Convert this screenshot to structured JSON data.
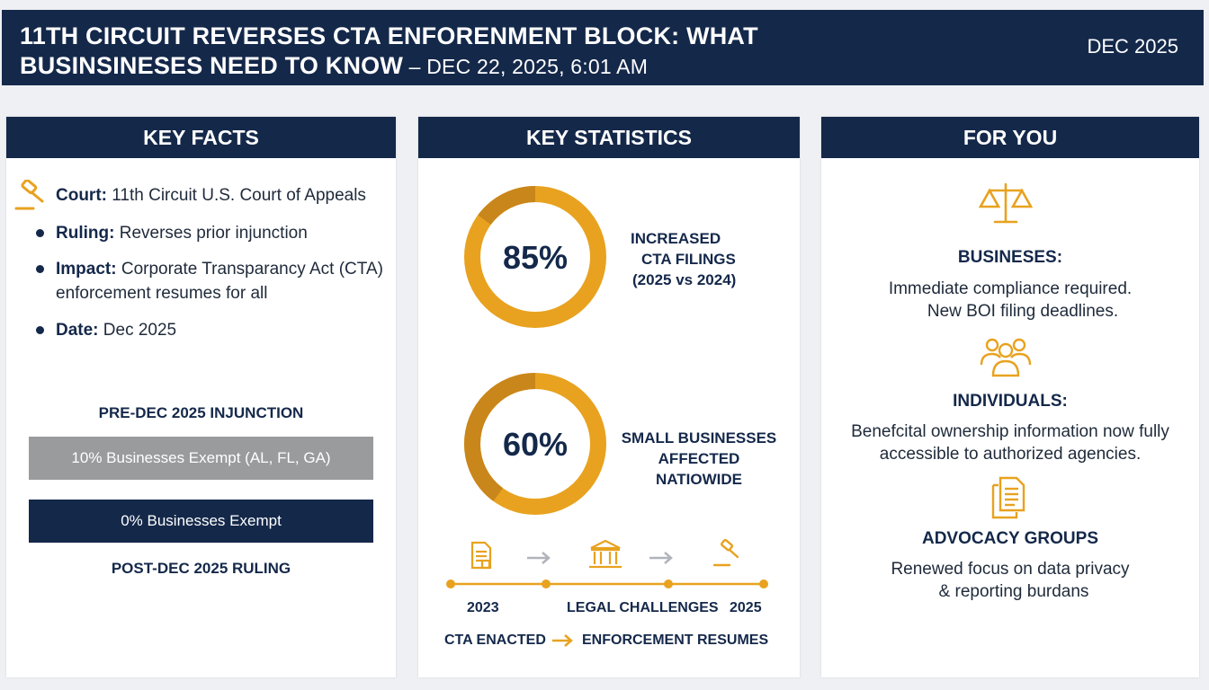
{
  "header": {
    "title_line1": "11TH CIRCUIT REVERSES CTA ENFORENMENT BLOCK: WHAT",
    "title_line2": "BUSINSINESES NEED TO KNOW",
    "title_sub": " – DEC 22, 2025, 6:01 AM",
    "date": "DEC 2025"
  },
  "key_facts": {
    "heading": "KEY FACTS",
    "court_label": "Court:",
    "court_value": " 11th Circuit U.S. Court of Appeals",
    "ruling_label": "Ruling:",
    "ruling_value": " Reverses prior injunction",
    "impact_label": "Impact:",
    "impact_value": " Corporate Transparancy Act (CTA)",
    "impact_value_2": "enforcement resumes for all",
    "date_label": "Date:",
    "date_value": " Dec 2025",
    "pre_label": "PRE-DEC 2025 INJUNCTION",
    "pre_bar": "10% Businesses Exempt (AL, FL, GA)",
    "post_bar": "0% Businesses Exempt",
    "post_label": "POST-DEC 2025 RULING",
    "pre_exempt_pct": 10,
    "post_exempt_pct": 0
  },
  "key_statistics": {
    "heading": "KEY STATISTICS",
    "stat1_value": "85%",
    "stat1_fraction": 0.85,
    "stat1_line1": "INCREASED",
    "stat1_line2": "CTA FILINGS",
    "stat1_line3": "(2025 vs 2024)",
    "stat2_value": "60%",
    "stat2_fraction": 0.6,
    "stat2_line1": "SMALL BUSINESSES",
    "stat2_line2": "AFFECTED",
    "stat2_line3": "NATIOWIDE",
    "timeline_2023": "2023",
    "timeline_mid": "LEGAL CHALLENGES",
    "timeline_2025": "2025",
    "timeline_start": "CTA ENACTED",
    "timeline_end": "ENFORCEMENT RESUMES"
  },
  "for_you": {
    "heading": "FOR YOU",
    "businesses_title": "BUSINESES:",
    "businesses_line1": "Immediate compliance required.",
    "businesses_line2": "New BOI filing deadlines.",
    "individuals_title": "INDIVIDUALS:",
    "individuals_line1": "Benefcital ownership information now fully",
    "individuals_line2": "accessible to authorized agencies.",
    "advocacy_title": "ADVOCACY GROUPS",
    "advocacy_line1": "Renewed focus on data privacy",
    "advocacy_line2": "& reporting burdans"
  },
  "colors": {
    "navy": "#14284a",
    "gold": "#e8a21f",
    "gold_dark": "#c9861a",
    "grey_bar": "#9a9b9d"
  },
  "icons": [
    "gavel-icon",
    "document-icon",
    "courthouse-icon",
    "scales-icon",
    "people-icon",
    "files-icon",
    "arrow-icon"
  ]
}
